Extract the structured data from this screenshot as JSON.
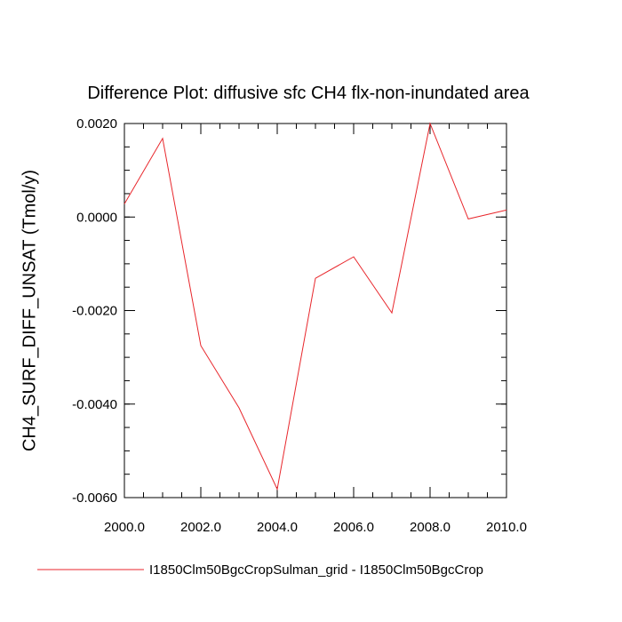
{
  "chart_data": {
    "type": "line",
    "title": "Difference Plot: diffusive sfc CH4 flx-non-inundated area",
    "xlabel": "",
    "ylabel": "CH4_SURF_DIFF_UNSAT  (Tmol/y)",
    "xlim": [
      2000,
      2010
    ],
    "ylim": [
      -0.006,
      0.002
    ],
    "x_ticks": [
      2000,
      2002,
      2004,
      2006,
      2008,
      2010
    ],
    "x_tick_labels": [
      "2000.0",
      "2002.0",
      "2004.0",
      "2006.0",
      "2008.0",
      "2010.0"
    ],
    "y_ticks": [
      0.002,
      0.0,
      -0.002,
      -0.004,
      -0.006
    ],
    "y_tick_labels": [
      "0.0020",
      "0.0000",
      "-0.0020",
      "-0.0040",
      "-0.0060"
    ],
    "grid": false,
    "legend_position": "bottom",
    "series": [
      {
        "name": "I1850Clm50BgcCropSulman_grid - I1850Clm50BgcCrop",
        "color": "#e8262b",
        "x": [
          2000,
          2001,
          2002,
          2003,
          2004,
          2005,
          2006,
          2007,
          2008,
          2009,
          2010
        ],
        "y": [
          0.00028,
          0.00168,
          -0.00275,
          -0.00408,
          -0.00582,
          -0.00131,
          -0.00085,
          -0.00205,
          0.002,
          -4e-05,
          0.00015
        ]
      }
    ]
  }
}
